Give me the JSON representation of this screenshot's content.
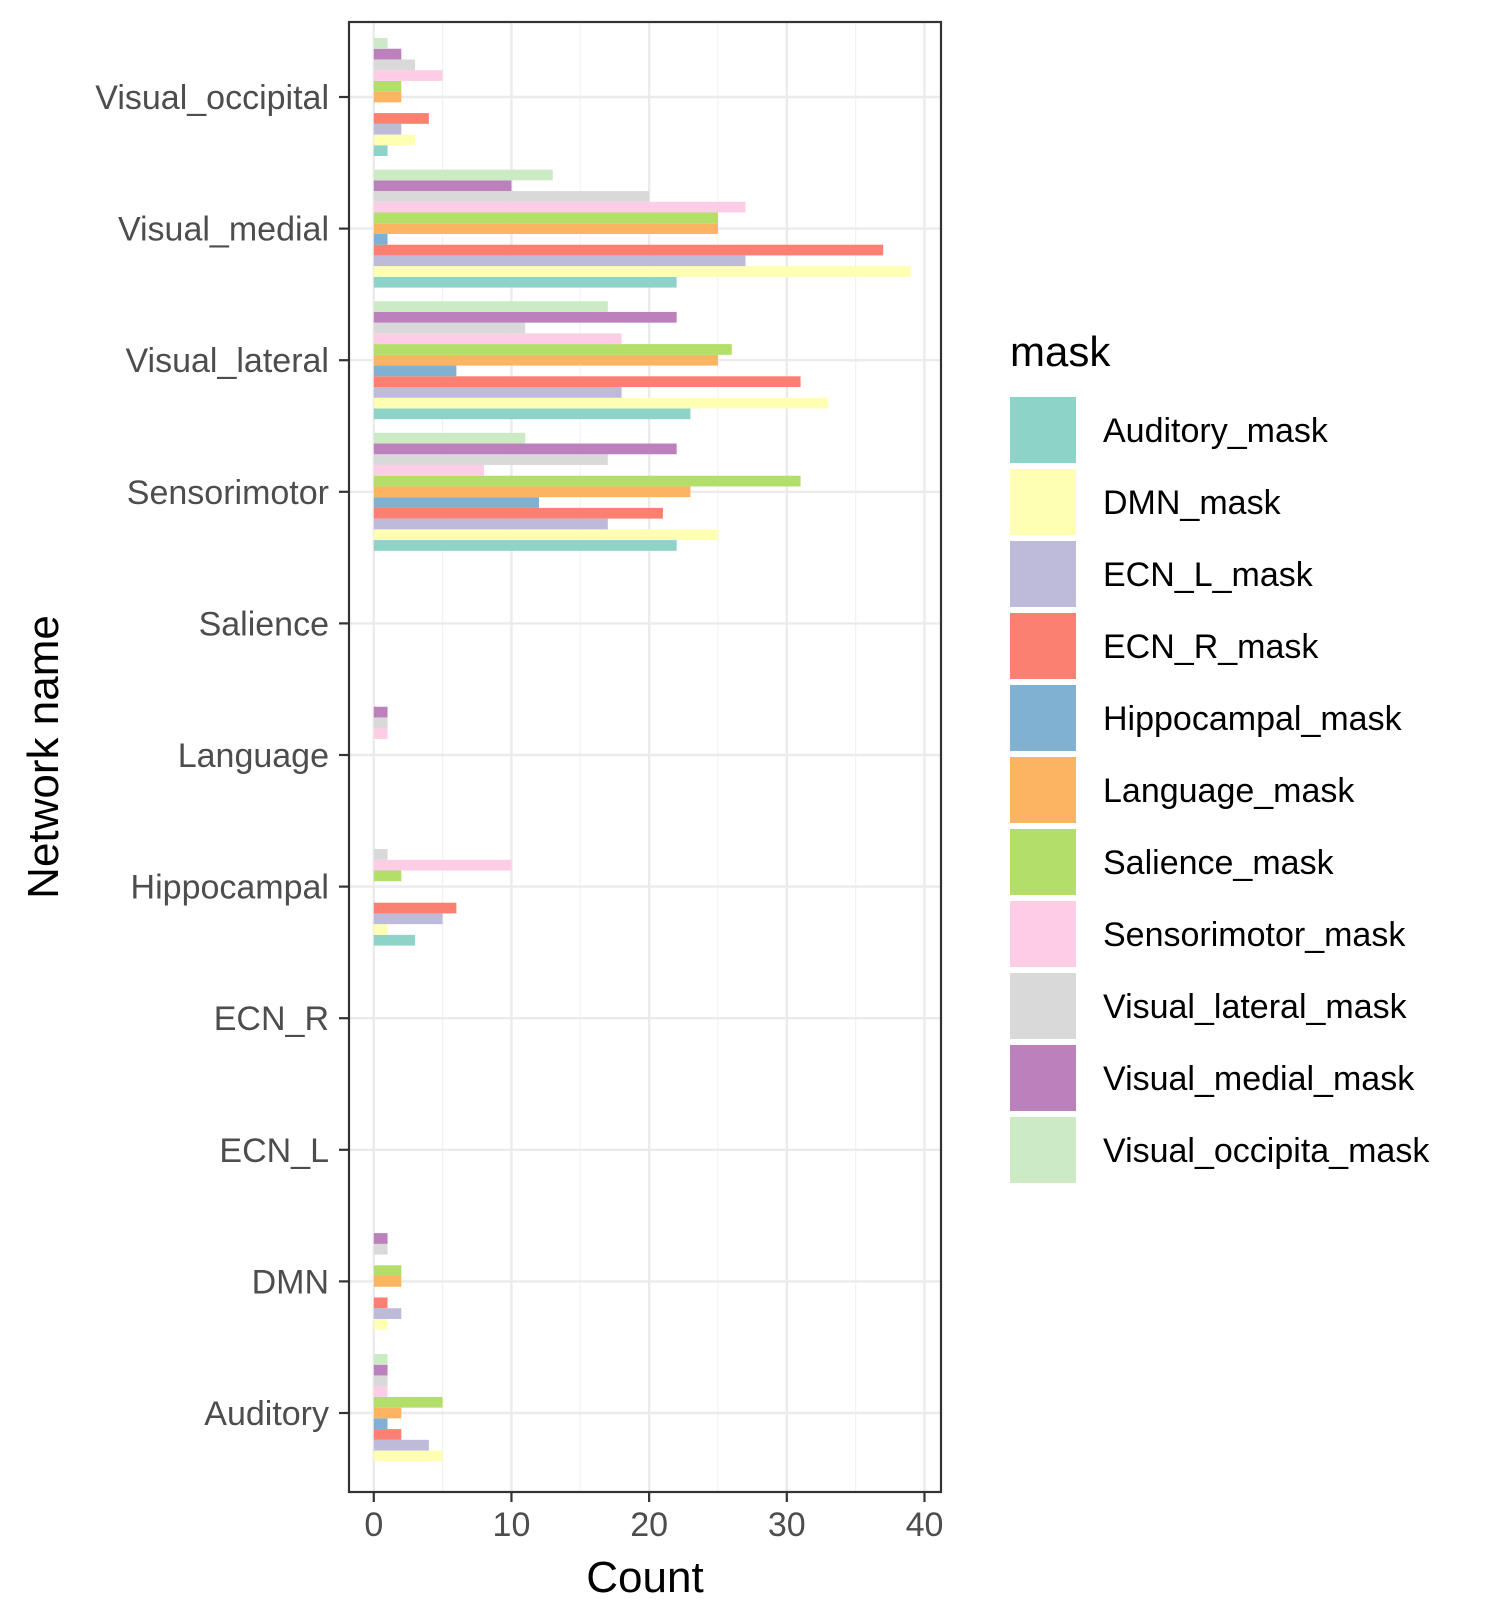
{
  "chart_data": {
    "type": "bar",
    "orientation": "horizontal",
    "xlabel": "Count",
    "ylabel": "Network name",
    "xlim": [
      -1.8,
      41.2
    ],
    "xticks": [
      0,
      10,
      20,
      30,
      40
    ],
    "xtick_labels": [
      "0",
      "10",
      "20",
      "30",
      "40"
    ],
    "grid": true,
    "legend_title": "mask",
    "legend_position": "right",
    "categories": [
      "Auditory",
      "DMN",
      "ECN_L",
      "ECN_R",
      "Hippocampal",
      "Language",
      "Salience",
      "Sensorimotor",
      "Visual_lateral",
      "Visual_medial",
      "Visual_occipital"
    ],
    "series": [
      {
        "name": "Auditory_mask",
        "color": "#8DD3C7",
        "values": [
          0,
          0,
          0,
          0,
          3,
          0,
          0,
          22,
          23,
          22,
          1
        ]
      },
      {
        "name": "DMN_mask",
        "color": "#FFFFB3",
        "values": [
          5,
          1,
          0,
          0,
          1,
          0,
          0,
          25,
          33,
          39,
          3
        ]
      },
      {
        "name": "ECN_L_mask",
        "color": "#BEBADA",
        "values": [
          4,
          2,
          0,
          0,
          5,
          0,
          0,
          17,
          18,
          27,
          2
        ]
      },
      {
        "name": "ECN_R_mask",
        "color": "#FB8072",
        "values": [
          2,
          1,
          0,
          0,
          6,
          0,
          0,
          21,
          31,
          37,
          4
        ]
      },
      {
        "name": "Hippocampal_mask",
        "color": "#80B1D3",
        "values": [
          1,
          0,
          0,
          0,
          0,
          0,
          0,
          12,
          6,
          1,
          0
        ]
      },
      {
        "name": "Language_mask",
        "color": "#FDB462",
        "values": [
          2,
          2,
          0,
          0,
          0,
          0,
          0,
          23,
          25,
          25,
          2
        ]
      },
      {
        "name": "Salience_mask",
        "color": "#B3DE69",
        "values": [
          5,
          2,
          0,
          0,
          2,
          0,
          0,
          31,
          26,
          25,
          2
        ]
      },
      {
        "name": "Sensorimotor_mask",
        "color": "#FCCDE5",
        "values": [
          1,
          0,
          0,
          0,
          10,
          1,
          0,
          8,
          18,
          27,
          5
        ]
      },
      {
        "name": "Visual_lateral_mask",
        "color": "#D9D9D9",
        "values": [
          1,
          1,
          0,
          0,
          1,
          1,
          0,
          17,
          11,
          20,
          3
        ]
      },
      {
        "name": "Visual_medial_mask",
        "color": "#BC80BD",
        "values": [
          1,
          1,
          0,
          0,
          0,
          1,
          0,
          22,
          22,
          10,
          2
        ]
      },
      {
        "name": "Visual_occipita_mask",
        "color": "#CCEBC5",
        "values": [
          1,
          0,
          0,
          0,
          0,
          0,
          0,
          11,
          17,
          13,
          1
        ]
      }
    ]
  }
}
